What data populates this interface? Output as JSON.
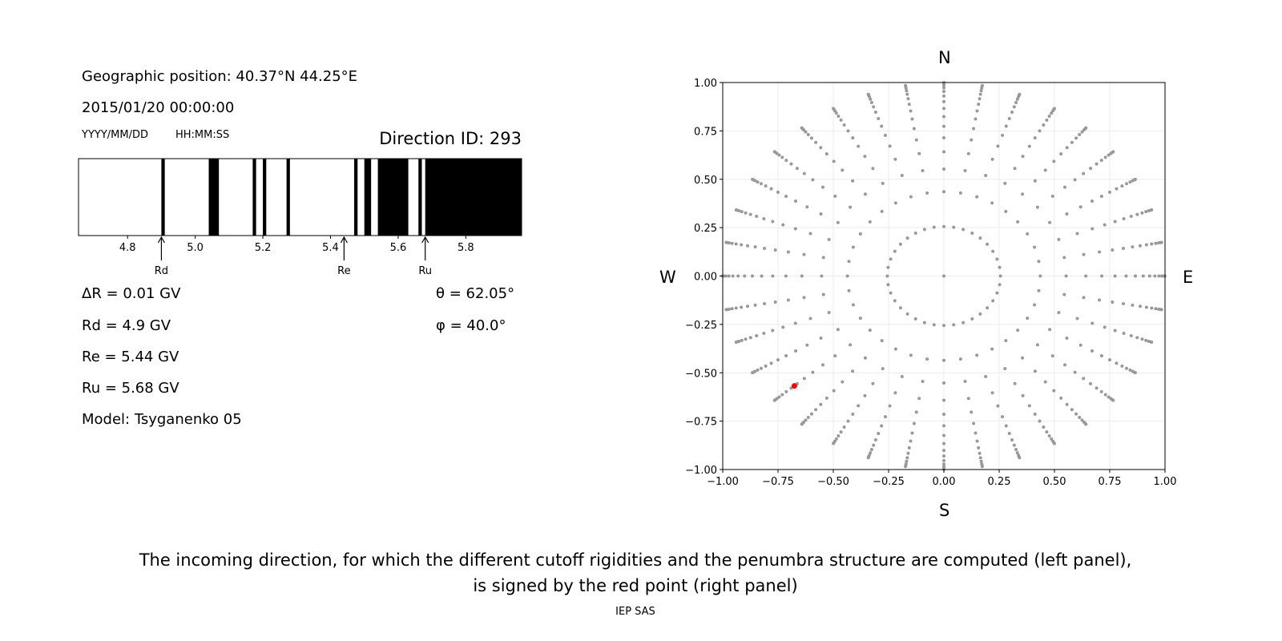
{
  "left_panel": {
    "geo_position": "Geographic position: 40.37°N 44.25°E",
    "datetime": "2015/01/20 00:00:00",
    "date_format": "YYYY/MM/DD",
    "time_format": "HH:MM:SS",
    "direction_id": "Direction ID: 293",
    "delta_r": "ΔR = 0.01 GV",
    "rd": "Rd = 4.9 GV",
    "re": "Re = 5.44 GV",
    "ru": "Ru = 5.68 GV",
    "model": "Model: Tsyganenko 05",
    "theta": "θ = 62.05°",
    "phi": "φ = 40.0°"
  },
  "right_panel": {
    "north": "N",
    "south": "S",
    "west": "W",
    "east": "E"
  },
  "caption": {
    "line1": "The incoming direction, for which the different cutoff rigidities and the penumbra structure are computed (left panel),",
    "line2": "is signed by the red point (right panel)",
    "credit": "IEP SAS"
  },
  "chart_data": [
    {
      "type": "bar",
      "description_kind": "penumbra",
      "xlim": [
        4.655,
        5.965
      ],
      "xticks": [
        4.8,
        5.0,
        5.2,
        5.4,
        5.6,
        5.8
      ],
      "xtick_labels": [
        "4.8",
        "5.0",
        "5.2",
        "5.4",
        "5.6",
        "5.8"
      ],
      "forbidden_bands_GV": [
        [
          4.9,
          4.91
        ],
        [
          5.04,
          5.07
        ],
        [
          5.17,
          5.18
        ],
        [
          5.2,
          5.21
        ],
        [
          5.27,
          5.28
        ],
        [
          5.47,
          5.48
        ],
        [
          5.5,
          5.52
        ],
        [
          5.54,
          5.63
        ],
        [
          5.66,
          5.67
        ],
        [
          5.68,
          5.965
        ]
      ],
      "markers": [
        {
          "label": "Rd",
          "value": 4.9
        },
        {
          "label": "Re",
          "value": 5.44
        },
        {
          "label": "Ru",
          "value": 5.68
        }
      ],
      "colors": {
        "forbidden": "#000000",
        "allowed": "#ffffff"
      }
    },
    {
      "type": "scatter",
      "xlim": [
        -1.0,
        1.0
      ],
      "ylim": [
        -1.0,
        1.0
      ],
      "xticks": [
        -1.0,
        -0.75,
        -0.5,
        -0.25,
        0.0,
        0.25,
        0.5,
        0.75,
        1.0
      ],
      "xtick_labels": [
        "−1.00",
        "−0.75",
        "−0.50",
        "−0.25",
        "0.00",
        "0.25",
        "0.50",
        "0.75",
        "1.00"
      ],
      "yticks": [
        -1.0,
        -0.75,
        -0.5,
        -0.25,
        0.0,
        0.25,
        0.5,
        0.75,
        1.0
      ],
      "ytick_labels": [
        "−1.00",
        "−0.75",
        "−0.50",
        "−0.25",
        "0.00",
        "0.25",
        "0.50",
        "0.75",
        "1.00"
      ],
      "grid": true,
      "direction_grid": {
        "azimuth_step_deg": 10,
        "zenith_cos_values": [
          0.9667,
          0.9,
          0.8333,
          0.7667,
          0.7,
          0.6333,
          0.5667,
          0.5,
          0.4333,
          0.3667,
          0.3,
          0.2333,
          0.1667,
          0.1,
          0.0333
        ],
        "center_point": [
          0.0,
          0.0
        ],
        "color": "#999999"
      },
      "selected_point": {
        "x": -0.676,
        "y": -0.568,
        "color": "#ff0000"
      }
    }
  ]
}
